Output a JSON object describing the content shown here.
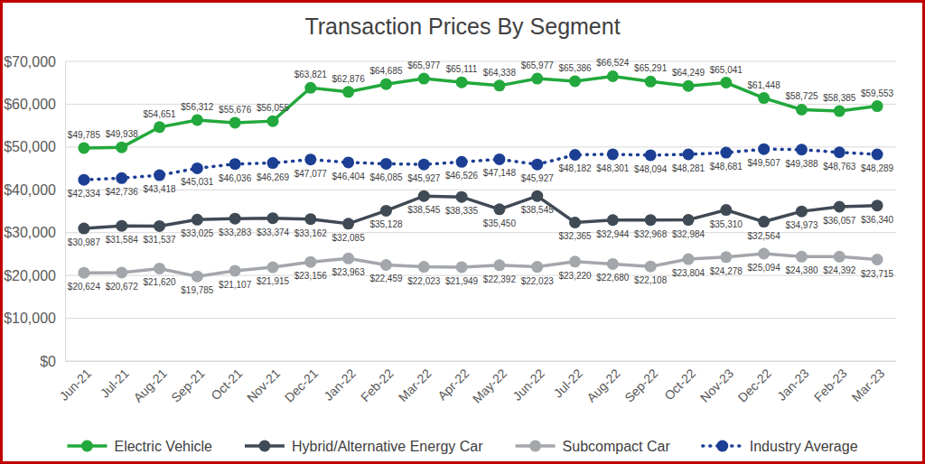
{
  "chart_data": {
    "type": "line",
    "title": "Transaction Prices By Segment",
    "categories": [
      "Jun-21",
      "Jul-21",
      "Aug-21",
      "Sep-21",
      "Oct-21",
      "Nov-21",
      "Dec-21",
      "Jan-22",
      "Feb-22",
      "Mar-22",
      "Apr-22",
      "May-22",
      "Jun-22",
      "Jul-22",
      "Aug-22",
      "Sep-22",
      "Oct-22",
      "Nov-23",
      "Dec-22",
      "Jan-23",
      "Feb-23",
      "Mar-23"
    ],
    "series": [
      {
        "name": "Electric Vehicle",
        "color": "#22a83c",
        "marker": "circle",
        "line_style": "solid",
        "values": [
          49785,
          49938,
          54651,
          56312,
          55676,
          56055,
          63821,
          62876,
          64685,
          65977,
          65111,
          64338,
          65977,
          65386,
          66524,
          65291,
          64249,
          65041,
          61448,
          58725,
          58385,
          59553
        ],
        "value_labels": [
          "$49,785",
          "$49,938",
          "$54,651",
          "$56,312",
          "$55,676",
          "$56,055",
          "$63,821",
          "$62,876",
          "$64,685",
          "$65,977",
          "$65,111",
          "$64,338",
          "$65,977",
          "$65,386",
          "$66,524",
          "$65,291",
          "$64,249",
          "$65,041",
          "$61,448",
          "$58,725",
          "$58,385",
          "$59,553"
        ]
      },
      {
        "name": "Hybrid/Alternative Energy Car",
        "color": "#3f4a55",
        "marker": "circle",
        "line_style": "solid",
        "values": [
          30987,
          31584,
          31537,
          33025,
          33283,
          33374,
          33162,
          32085,
          35128,
          38545,
          38335,
          35450,
          38545,
          32365,
          32944,
          32968,
          32984,
          35310,
          32564,
          34973,
          36057,
          36340
        ],
        "value_labels": [
          "$30,987",
          "$31,584",
          "$31,537",
          "$33,025",
          "$33,283",
          "$33,374",
          "$33,162",
          "$32,085",
          "$35,128",
          "$38,545",
          "$38,335",
          "$35,450",
          "$38,545",
          "$32,365",
          "$32,944",
          "$32,968",
          "$32,984",
          "$35,310",
          "$32,564",
          "$34,973",
          "$36,057",
          "$36,340"
        ]
      },
      {
        "name": "Subcompact Car",
        "color": "#a3a7ab",
        "marker": "circle",
        "line_style": "solid",
        "values": [
          20624,
          20672,
          21620,
          19785,
          21107,
          21915,
          23156,
          23963,
          22459,
          22023,
          21949,
          22392,
          22023,
          23220,
          22680,
          22108,
          23804,
          24278,
          25094,
          24380,
          24392,
          23715
        ],
        "value_labels": [
          "$20,624",
          "$20,672",
          "$21,620",
          "$19,785",
          "$21,107",
          "$21,915",
          "$23,156",
          "$23,963",
          "$22,459",
          "$22,023",
          "$21,949",
          "$22,392",
          "$22,023",
          "$23,220",
          "$22,680",
          "$22,108",
          "$23,804",
          "$24,278",
          "$25,094",
          "$24,380",
          "$24,392",
          "$23,715"
        ]
      },
      {
        "name": "Industry Average",
        "color": "#1c3f94",
        "marker": "circle",
        "line_style": "dotted",
        "values": [
          42334,
          42736,
          43418,
          45031,
          46036,
          46269,
          47077,
          46404,
          46085,
          45927,
          46526,
          47148,
          45927,
          48182,
          48301,
          48094,
          48281,
          48681,
          49507,
          49388,
          48763,
          48289
        ],
        "value_labels": [
          "$42,334",
          "$42,736",
          "$43,418",
          "$45,031",
          "$46,036",
          "$46,269",
          "$47,077",
          "$46,404",
          "$46,085",
          "$45,927",
          "$46,526",
          "$47,148",
          "$45,927",
          "$48,182",
          "$48,301",
          "$48,094",
          "$48,281",
          "$48,681",
          "$49,507",
          "$49,388",
          "$48,763",
          "$48,289"
        ]
      }
    ],
    "ylim": [
      0,
      70000
    ],
    "yticks": [
      {
        "value": 0,
        "label": "$0"
      },
      {
        "value": 10000,
        "label": "$10,000"
      },
      {
        "value": 20000,
        "label": "$20,000"
      },
      {
        "value": 30000,
        "label": "$30,000"
      },
      {
        "value": 40000,
        "label": "$40,000"
      },
      {
        "value": 50000,
        "label": "$50,000"
      },
      {
        "value": 60000,
        "label": "$60,000"
      },
      {
        "value": 70000,
        "label": "$70,000"
      }
    ],
    "grid": true,
    "legend": "bottom",
    "data_labels": true
  }
}
